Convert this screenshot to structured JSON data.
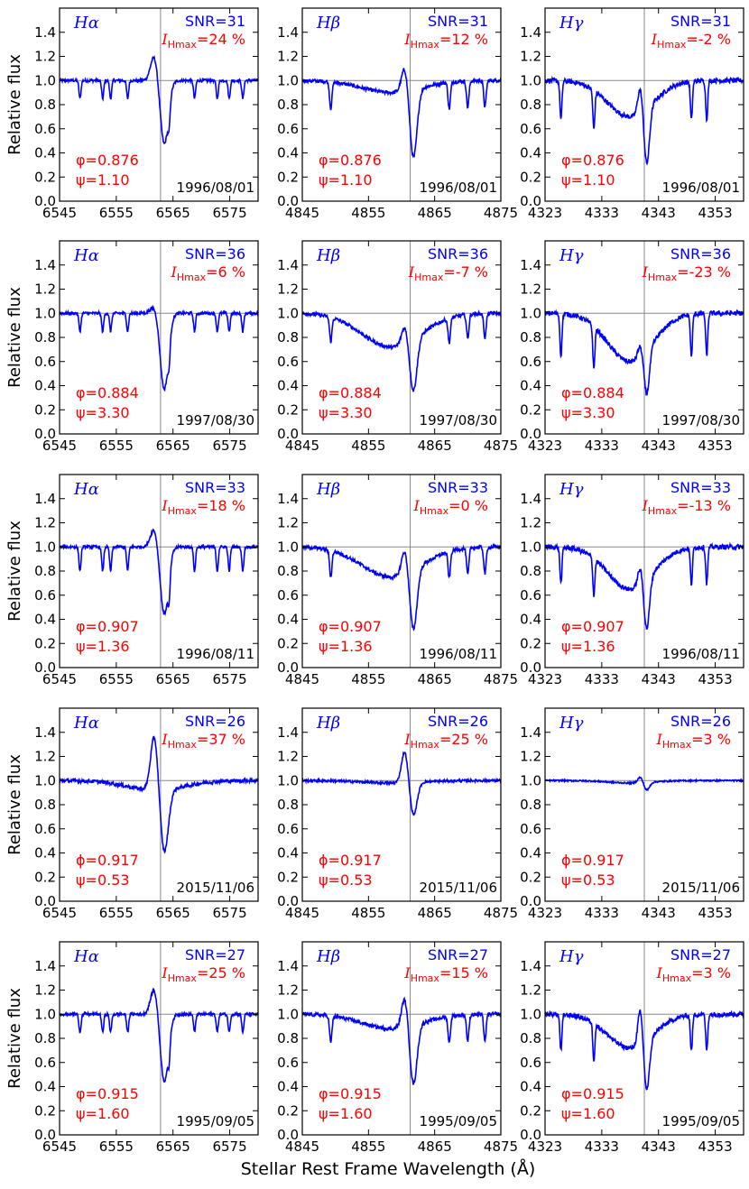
{
  "figure": {
    "ylabel": "Relative flux",
    "xlabel": "Stellar Rest Frame Wavelength (Å)"
  },
  "colors": {
    "line": "#0000ff",
    "title": "#0000ff",
    "snr": "#0000ff",
    "param": "#ff0000",
    "ref": "#888888"
  },
  "chart_data": {
    "type": "line",
    "ylim": [
      0.0,
      1.6
    ],
    "yticks": [
      "0.0",
      "0.2",
      "0.4",
      "0.6",
      "0.8",
      "1.0",
      "1.2",
      "1.4"
    ],
    "columns": [
      {
        "line": "Hα",
        "xlim": [
          6545,
          6580
        ],
        "xticks": [
          6545,
          6555,
          6565,
          6575
        ],
        "center": 6562.8,
        "width": 1.2,
        "broad_center": 6562.0,
        "broad_width": 5,
        "lines": [
          6548.6,
          6552.6,
          6554.0,
          6557.0,
          6564.3,
          6568.8,
          6572.8,
          6574.9,
          6577.3
        ]
      },
      {
        "line": "Hβ",
        "xlim": [
          4845,
          4875
        ],
        "xticks": [
          4845,
          4855,
          4865,
          4875
        ],
        "center": 4861.3,
        "width": 0.9,
        "broad_center": 4858.5,
        "broad_width": 4.5,
        "lines": [
          4849.3,
          4867.2,
          4870.0,
          4872.6
        ]
      },
      {
        "line": "Hγ",
        "xlim": [
          4323,
          4358
        ],
        "xticks": [
          4323,
          4333,
          4343,
          4353
        ],
        "center": 4340.5,
        "width": 0.8,
        "broad_center": 4338.0,
        "broad_width": 4,
        "lines": [
          4325.8,
          4331.6,
          4348.8,
          4351.5
        ]
      }
    ],
    "rows": [
      {
        "date": "1996/08/01",
        "phi_symbol": "φ",
        "phase": "0.876",
        "psi": "1.10",
        "snr": "31",
        "panels": [
          {
            "imax": "24",
            "peak": 1.21,
            "minimum": 0.47,
            "broad": 0.0,
            "line_depth": 0.15,
            "noise": 0.012
          },
          {
            "imax": "12",
            "peak": 1.12,
            "minimum": 0.35,
            "broad": 0.1,
            "line_depth": 0.22,
            "noise": 0.015
          },
          {
            "imax": "-2",
            "peak": 0.97,
            "minimum": 0.29,
            "broad": 0.3,
            "line_depth": 0.32,
            "noise": 0.02
          }
        ]
      },
      {
        "date": "1997/08/30",
        "phi_symbol": "φ",
        "phase": "0.884",
        "psi": "3.30",
        "snr": "36",
        "panels": [
          {
            "imax": "6",
            "peak": 1.06,
            "minimum": 0.37,
            "broad": 0.0,
            "line_depth": 0.15,
            "noise": 0.012
          },
          {
            "imax": "-7",
            "peak": 0.92,
            "minimum": 0.34,
            "broad": 0.28,
            "line_depth": 0.2,
            "noise": 0.015
          },
          {
            "imax": "-23",
            "peak": 0.77,
            "minimum": 0.31,
            "broad": 0.4,
            "line_depth": 0.35,
            "noise": 0.02
          }
        ]
      },
      {
        "date": "1996/08/11",
        "phi_symbol": "φ",
        "phase": "0.907",
        "psi": "1.36",
        "snr": "33",
        "panels": [
          {
            "imax": "18",
            "peak": 1.16,
            "minimum": 0.44,
            "broad": 0.0,
            "line_depth": 0.2,
            "noise": 0.012
          },
          {
            "imax": "0",
            "peak": 1.0,
            "minimum": 0.3,
            "broad": 0.25,
            "line_depth": 0.22,
            "noise": 0.015
          },
          {
            "imax": "-13",
            "peak": 0.86,
            "minimum": 0.3,
            "broad": 0.35,
            "line_depth": 0.3,
            "noise": 0.02
          }
        ]
      },
      {
        "date": "2015/11/06",
        "phi_symbol": "ϕ",
        "phase": "0.917",
        "psi": "0.53",
        "snr": "26",
        "panels": [
          {
            "imax": "37",
            "peak": 1.38,
            "minimum": 0.4,
            "broad": 0.08,
            "line_depth": 0.0,
            "noise": 0.015
          },
          {
            "imax": "25",
            "peak": 1.25,
            "minimum": 0.71,
            "broad": 0.02,
            "line_depth": 0.0,
            "noise": 0.01
          },
          {
            "imax": "3",
            "peak": 1.03,
            "minimum": 0.92,
            "broad": 0.02,
            "line_depth": 0.0,
            "noise": 0.006
          }
        ]
      },
      {
        "date": "1995/09/05",
        "phi_symbol": "φ",
        "phase": "0.915",
        "psi": "1.60",
        "snr": "27",
        "panels": [
          {
            "imax": "25",
            "peak": 1.22,
            "minimum": 0.44,
            "broad": 0.0,
            "line_depth": 0.15,
            "noise": 0.012
          },
          {
            "imax": "15",
            "peak": 1.15,
            "minimum": 0.41,
            "broad": 0.12,
            "line_depth": 0.22,
            "noise": 0.015
          },
          {
            "imax": "3",
            "peak": 1.06,
            "minimum": 0.35,
            "broad": 0.28,
            "line_depth": 0.3,
            "noise": 0.02
          }
        ]
      }
    ]
  }
}
